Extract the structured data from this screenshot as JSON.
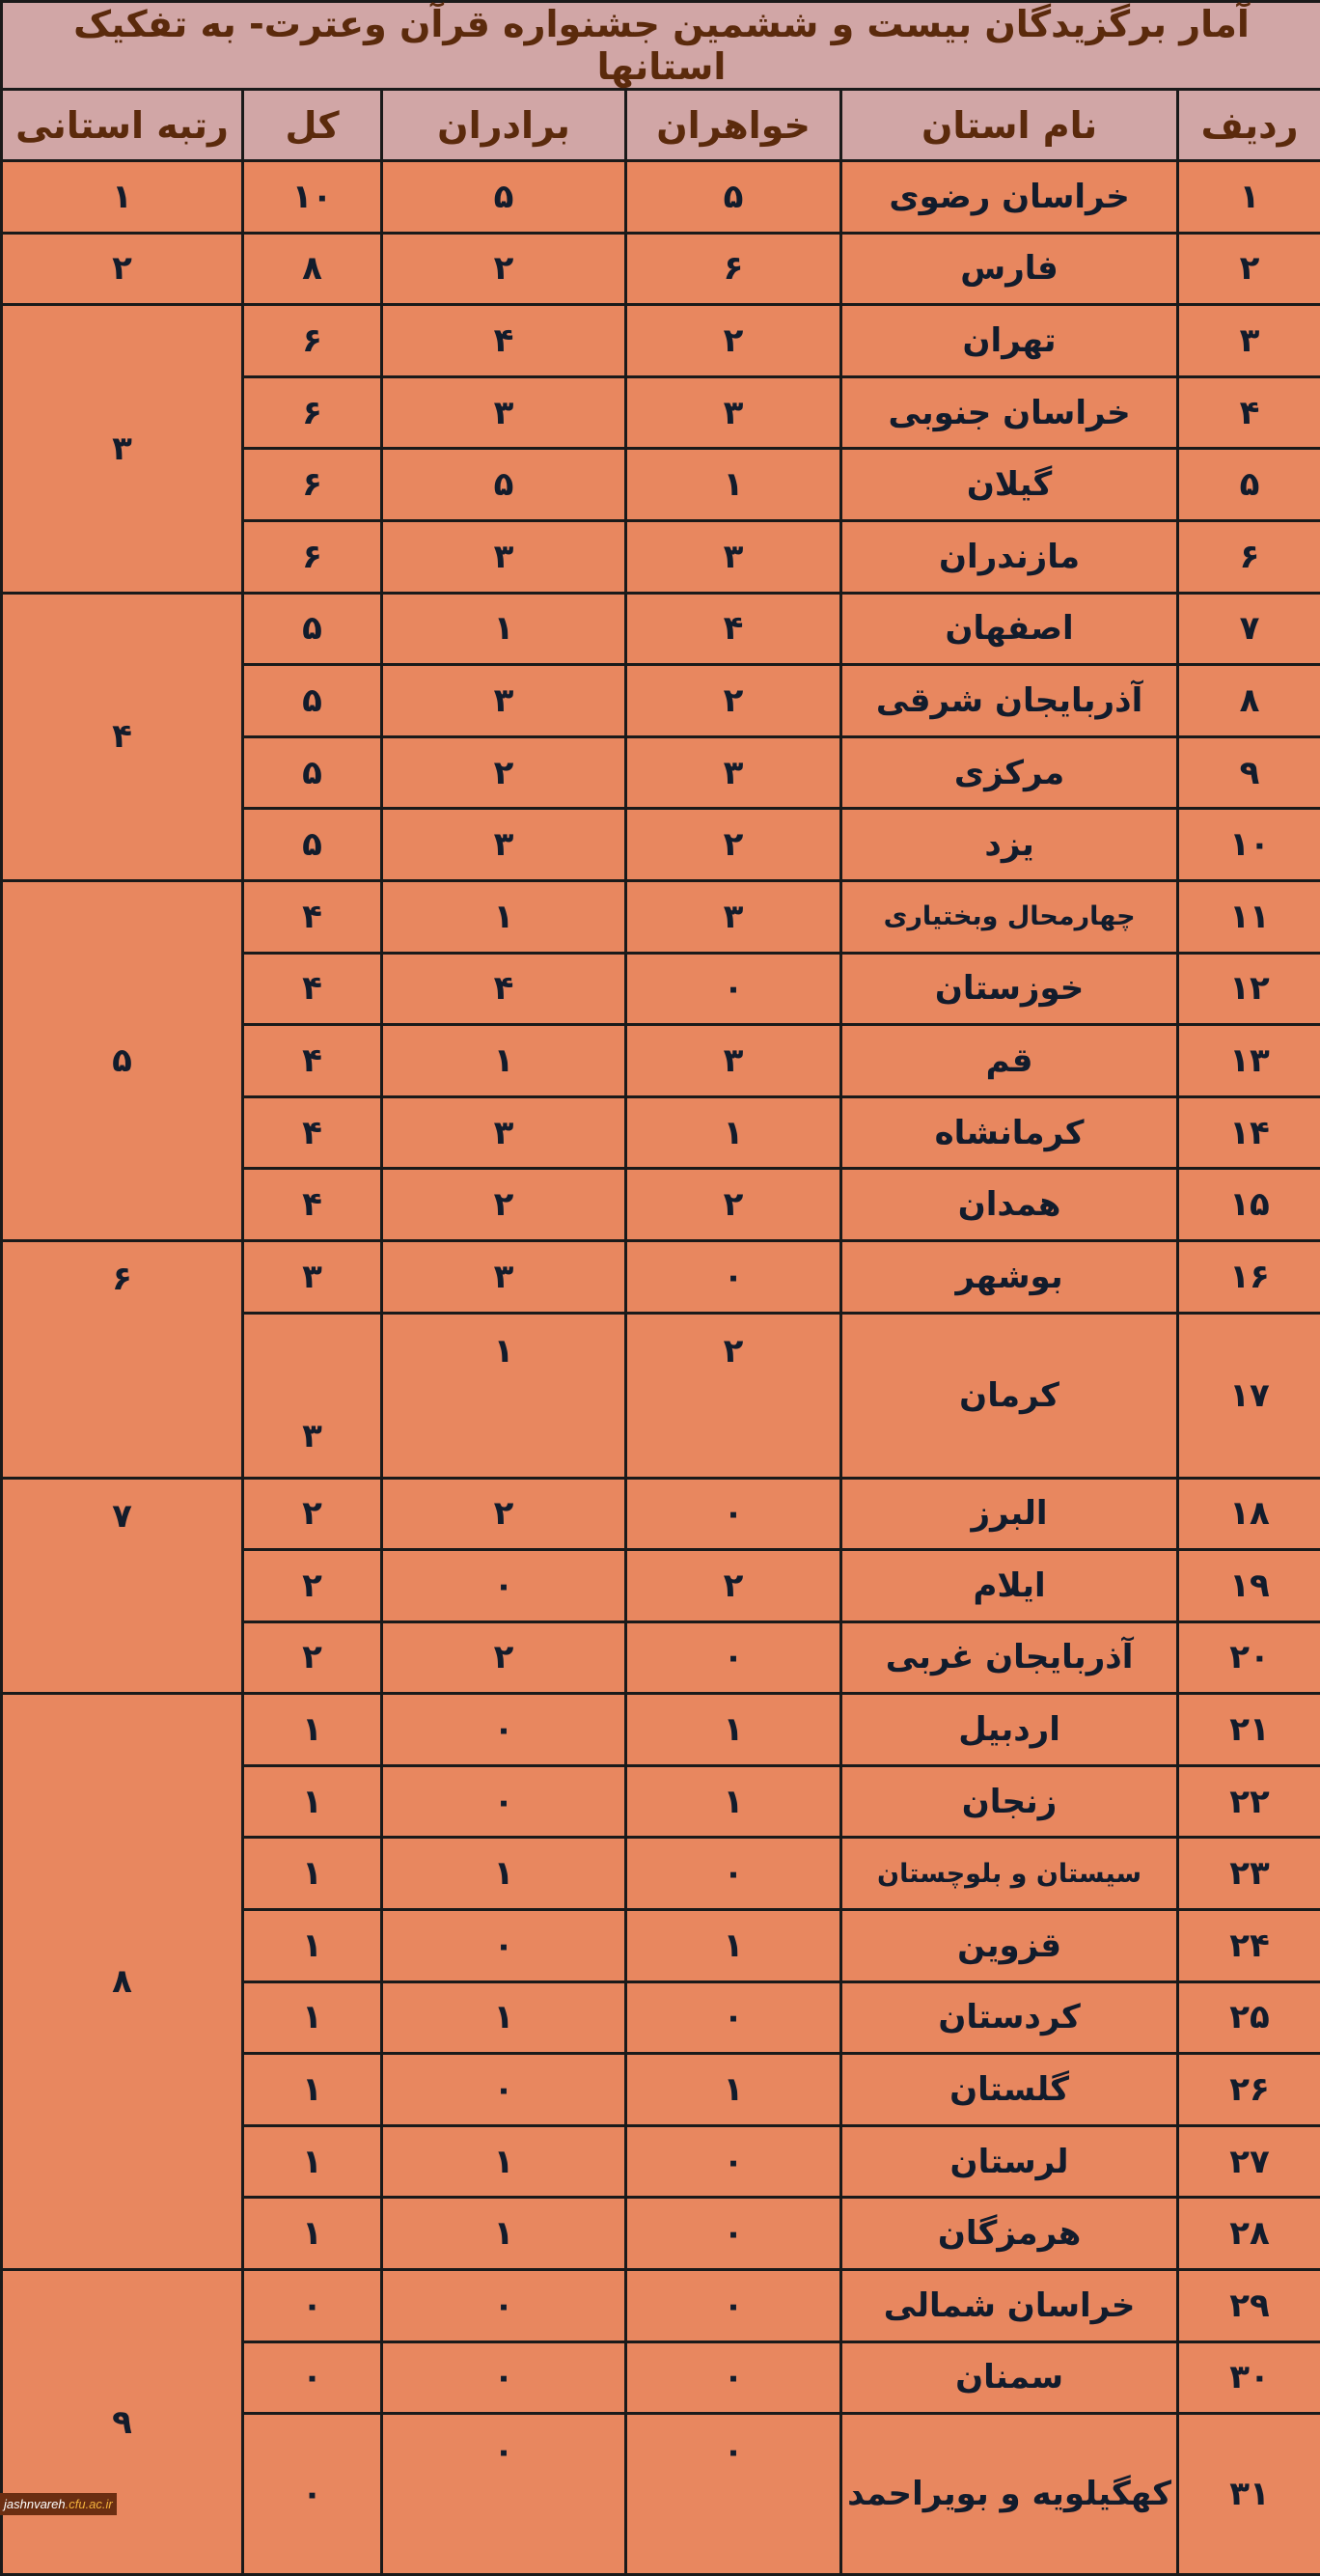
{
  "title": "آمار برگزیدگان بیست و ششمین جشنواره قرآن وعترت- به تفکیک استانها",
  "headers": {
    "row": "ردیف",
    "province": "نام استان",
    "sisters": "خواهران",
    "brothers": "برادران",
    "total": "کل",
    "rank": "رتبه استانی"
  },
  "rows": [
    {
      "row": "۱",
      "province": "خراسان رضوی",
      "sisters": "۵",
      "brothers": "۵",
      "total": "۱۰"
    },
    {
      "row": "۲",
      "province": "فارس",
      "sisters": "۶",
      "brothers": "۲",
      "total": "۸"
    },
    {
      "row": "۳",
      "province": "تهران",
      "sisters": "۲",
      "brothers": "۴",
      "total": "۶"
    },
    {
      "row": "۴",
      "province": "خراسان جنوبی",
      "sisters": "۳",
      "brothers": "۳",
      "total": "۶"
    },
    {
      "row": "۵",
      "province": "گیلان",
      "sisters": "۱",
      "brothers": "۵",
      "total": "۶"
    },
    {
      "row": "۶",
      "province": "مازندران",
      "sisters": "۳",
      "brothers": "۳",
      "total": "۶"
    },
    {
      "row": "۷",
      "province": "اصفهان",
      "sisters": "۴",
      "brothers": "۱",
      "total": "۵"
    },
    {
      "row": "۸",
      "province": "آذربایجان شرقی",
      "sisters": "۲",
      "brothers": "۳",
      "total": "۵"
    },
    {
      "row": "۹",
      "province": "مرکزی",
      "sisters": "۳",
      "brothers": "۲",
      "total": "۵"
    },
    {
      "row": "۱۰",
      "province": "یزد",
      "sisters": "۲",
      "brothers": "۳",
      "total": "۵"
    },
    {
      "row": "۱۱",
      "province": "چهارمحال وبختیاری",
      "sisters": "۳",
      "brothers": "۱",
      "total": "۴"
    },
    {
      "row": "۱۲",
      "province": "خوزستان",
      "sisters": "۰",
      "brothers": "۴",
      "total": "۴"
    },
    {
      "row": "۱۳",
      "province": "قم",
      "sisters": "۳",
      "brothers": "۱",
      "total": "۴"
    },
    {
      "row": "۱۴",
      "province": "کرمانشاه",
      "sisters": "۱",
      "brothers": "۳",
      "total": "۴"
    },
    {
      "row": "۱۵",
      "province": "همدان",
      "sisters": "۲",
      "brothers": "۲",
      "total": "۴"
    },
    {
      "row": "۱۶",
      "province": "بوشهر",
      "sisters": "۰",
      "brothers": "۳",
      "total": "۳"
    },
    {
      "row": "۱۷",
      "province": "کرمان",
      "sisters": "۲",
      "brothers": "۱",
      "total": "۳"
    },
    {
      "row": "۱۸",
      "province": "البرز",
      "sisters": "۰",
      "brothers": "۲",
      "total": "۲"
    },
    {
      "row": "۱۹",
      "province": "ایلام",
      "sisters": "۲",
      "brothers": "۰",
      "total": "۲"
    },
    {
      "row": "۲۰",
      "province": "آذربایجان غربی",
      "sisters": "۰",
      "brothers": "۲",
      "total": "۲"
    },
    {
      "row": "۲۱",
      "province": "اردبیل",
      "sisters": "۱",
      "brothers": "۰",
      "total": "۱"
    },
    {
      "row": "۲۲",
      "province": "زنجان",
      "sisters": "۱",
      "brothers": "۰",
      "total": "۱"
    },
    {
      "row": "۲۳",
      "province": "سیستان و بلوچستان",
      "sisters": "۰",
      "brothers": "۱",
      "total": "۱"
    },
    {
      "row": "۲۴",
      "province": "قزوین",
      "sisters": "۱",
      "brothers": "۰",
      "total": "۱"
    },
    {
      "row": "۲۵",
      "province": "کردستان",
      "sisters": "۰",
      "brothers": "۱",
      "total": "۱"
    },
    {
      "row": "۲۶",
      "province": "گلستان",
      "sisters": "۱",
      "brothers": "۰",
      "total": "۱"
    },
    {
      "row": "۲۷",
      "province": "لرستان",
      "sisters": "۰",
      "brothers": "۱",
      "total": "۱"
    },
    {
      "row": "۲۸",
      "province": "هرمزگان",
      "sisters": "۰",
      "brothers": "۱",
      "total": "۱"
    },
    {
      "row": "۲۹",
      "province": "خراسان شمالی",
      "sisters": "۰",
      "brothers": "۰",
      "total": "۰"
    },
    {
      "row": "۳۰",
      "province": "سمنان",
      "sisters": "۰",
      "brothers": "۰",
      "total": "۰"
    },
    {
      "row": "۳۱",
      "province": "کهگیلویه و بویراحمد",
      "sisters": "۰",
      "brothers": "۰",
      "total": "۰"
    }
  ],
  "rank_groups": [
    {
      "rank": "۱",
      "count": 1
    },
    {
      "rank": "۲",
      "count": 1
    },
    {
      "rank": "۳",
      "count": 4
    },
    {
      "rank": "۴",
      "count": 4
    },
    {
      "rank": "۵",
      "count": 5
    },
    {
      "rank": "۶",
      "count": 2
    },
    {
      "rank": "۷",
      "count": 3
    },
    {
      "rank": "۸",
      "count": 8
    },
    {
      "rank": "۹",
      "count": 3
    }
  ],
  "watermark": {
    "name": "jashnvareh",
    "domain": ".cfu.ac.ir"
  },
  "colors": {
    "header_bg": "#d1a6a6",
    "header_text": "#5b2a0c",
    "body_bg": "#e8875f",
    "body_text": "#121c2c"
  }
}
